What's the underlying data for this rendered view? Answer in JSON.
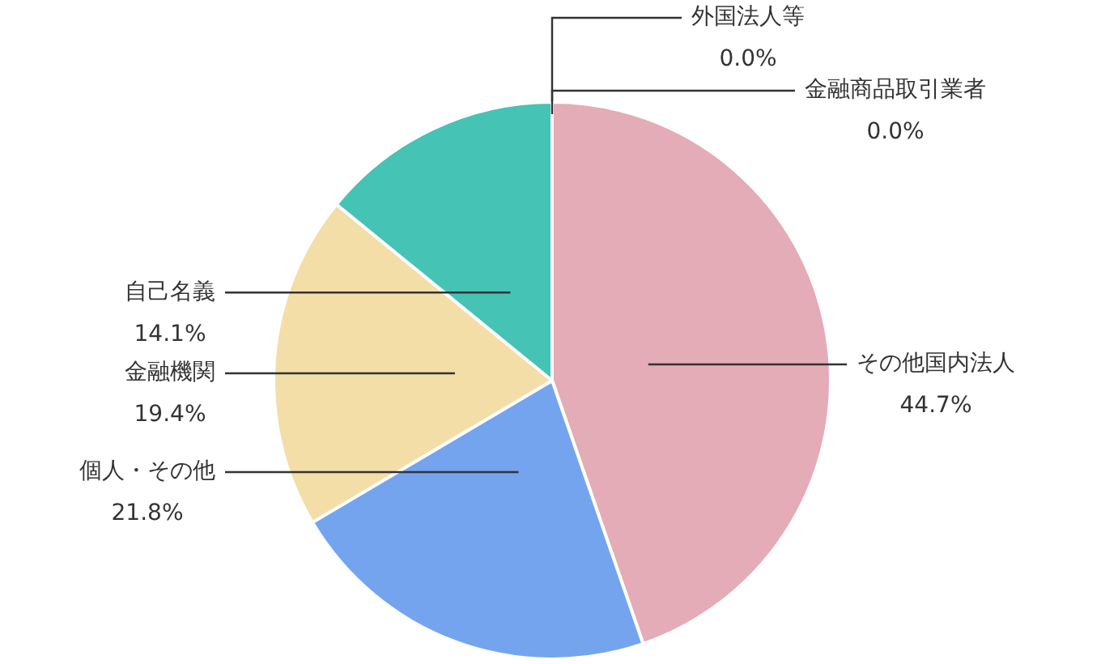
{
  "chart_data": {
    "type": "pie",
    "categories": [
      "その他国内法人",
      "個人・その他",
      "金融機関",
      "自己名義",
      "外国法人等",
      "金融商品取引業者"
    ],
    "values": [
      44.7,
      21.8,
      19.4,
      14.1,
      0.0,
      0.0
    ],
    "value_labels": [
      "44.7%",
      "21.8%",
      "19.4%",
      "14.1%",
      "0.0%",
      "0.0%"
    ],
    "colors": [
      "#e4acb6",
      "#75a4ef",
      "#f3dea8",
      "#45c3b5",
      "#c8c8c8",
      "#a0a0a0"
    ],
    "legend": false
  }
}
